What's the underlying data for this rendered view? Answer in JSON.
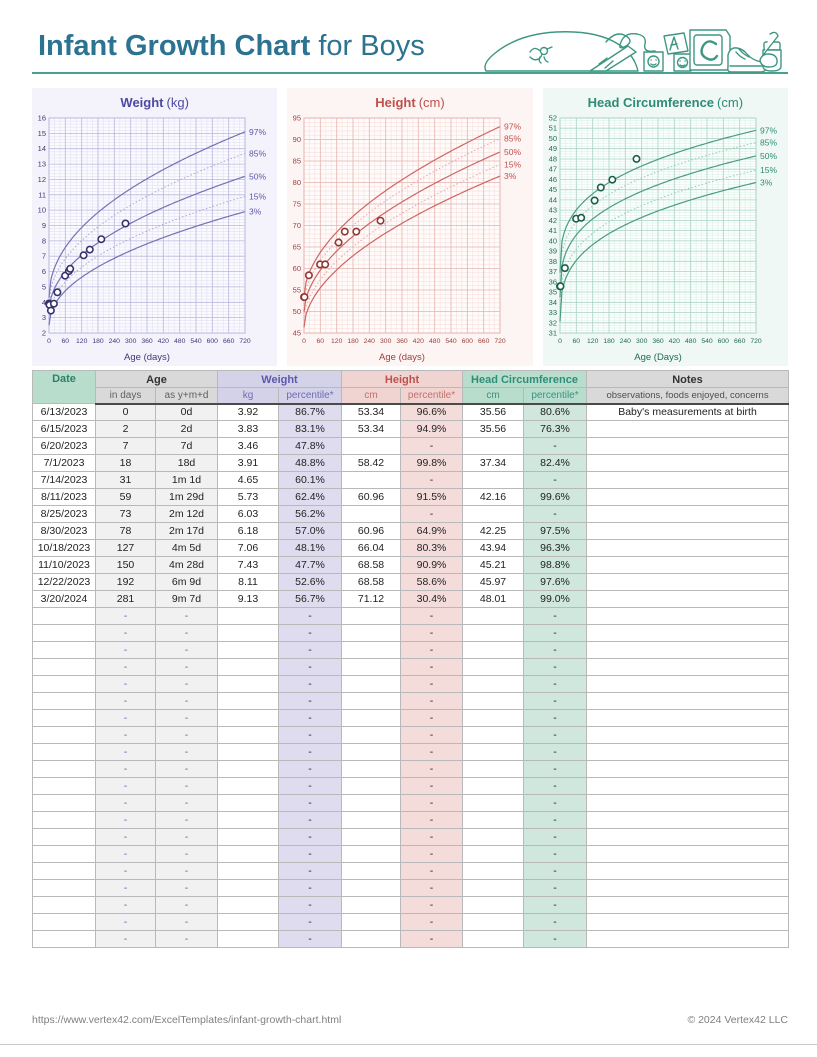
{
  "header": {
    "title_main": "Infant Growth Chart",
    "title_suffix": " for Boys"
  },
  "accent_colors": {
    "title_text": "#2b7390",
    "header_rule": "#49a18c",
    "toys_line_art": "#3f9682"
  },
  "chart_data": [
    {
      "type": "line",
      "title": "Weight",
      "unit_label": "(kg)",
      "xlabel": "Age (days)",
      "xlim": [
        0,
        720
      ],
      "x_tick_step": 60,
      "x_minor_step": 20,
      "ylim": [
        2,
        16
      ],
      "y_tick_step": 1,
      "y_minor_step": 0.2,
      "legend_position": "right",
      "curve_exponent": 0.48,
      "percentiles": [
        {
          "label": "97%",
          "start": 4.3,
          "end": 15.1,
          "style": "solid"
        },
        {
          "label": "85%",
          "start": 3.85,
          "end": 13.7,
          "style": "dotted"
        },
        {
          "label": "50%",
          "start": 3.3,
          "end": 12.2,
          "style": "solid"
        },
        {
          "label": "15%",
          "start": 2.9,
          "end": 10.9,
          "style": "dotted"
        },
        {
          "label": "3%",
          "start": 2.5,
          "end": 9.9,
          "style": "solid"
        }
      ],
      "points": {
        "x": [
          0,
          2,
          7,
          18,
          31,
          59,
          73,
          78,
          127,
          150,
          192,
          281
        ],
        "y": [
          3.92,
          3.83,
          3.46,
          3.91,
          4.65,
          5.73,
          6.03,
          6.18,
          7.06,
          7.43,
          8.11,
          9.13
        ]
      },
      "colors": {
        "title": "#4b49a4",
        "accent": "#5b58a8",
        "curve": "#7472b4",
        "dotted": "#a6a4cf",
        "grid_major": "#b9b7dc",
        "grid_minor": "#e2e1f2",
        "text": "#3c3a78",
        "marker": "#34316b",
        "panel_bg": "#f4f3fb",
        "plot_bg": "#fbfaff"
      }
    },
    {
      "type": "line",
      "title": "Height",
      "unit_label": "(cm)",
      "xlabel": "Age (days)",
      "xlim": [
        0,
        720
      ],
      "x_tick_step": 60,
      "x_minor_step": 20,
      "ylim": [
        45,
        95
      ],
      "y_tick_step": 5,
      "y_minor_step": 1,
      "legend_position": "right",
      "curve_exponent": 0.54,
      "percentiles": [
        {
          "label": "97%",
          "start": 53.4,
          "end": 93.0,
          "style": "solid"
        },
        {
          "label": "85%",
          "start": 51.8,
          "end": 90.2,
          "style": "dotted"
        },
        {
          "label": "50%",
          "start": 49.9,
          "end": 87.1,
          "style": "solid"
        },
        {
          "label": "15%",
          "start": 47.9,
          "end": 84.2,
          "style": "dotted"
        },
        {
          "label": "3%",
          "start": 46.3,
          "end": 81.5,
          "style": "solid"
        }
      ],
      "points": {
        "x": [
          0,
          2,
          18,
          59,
          78,
          127,
          150,
          192,
          281
        ],
        "y": [
          53.34,
          53.34,
          58.42,
          60.96,
          60.96,
          66.04,
          68.58,
          68.58,
          71.12
        ]
      },
      "colors": {
        "title": "#c0504d",
        "accent": "#c0504d",
        "curve": "#cd6662",
        "dotted": "#e0a39f",
        "grid_major": "#e5b3af",
        "grid_minor": "#f6dfdd",
        "text": "#9c3f3c",
        "marker": "#8e3734",
        "panel_bg": "#fdf5f3",
        "plot_bg": "#fffbfa"
      }
    },
    {
      "type": "line",
      "title": "Head Circumference",
      "unit_label": "(cm)",
      "xlabel": "Age (Days)",
      "xlim": [
        0,
        720
      ],
      "x_tick_step": 60,
      "x_minor_step": 20,
      "ylim": [
        31,
        52
      ],
      "y_tick_step": 1,
      "y_minor_step": 0.25,
      "legend_position": "right",
      "curve_exponent": 0.33,
      "percentiles": [
        {
          "label": "97%",
          "start": 36.9,
          "end": 50.8,
          "style": "solid"
        },
        {
          "label": "85%",
          "start": 35.8,
          "end": 49.6,
          "style": "dotted"
        },
        {
          "label": "50%",
          "start": 34.5,
          "end": 48.3,
          "style": "solid"
        },
        {
          "label": "15%",
          "start": 33.1,
          "end": 46.9,
          "style": "dotted"
        },
        {
          "label": "3%",
          "start": 32.1,
          "end": 45.7,
          "style": "solid"
        }
      ],
      "points": {
        "x": [
          0,
          2,
          18,
          59,
          78,
          127,
          150,
          192,
          281
        ],
        "y": [
          35.56,
          35.56,
          37.34,
          42.16,
          42.25,
          43.94,
          45.21,
          45.97,
          48.01
        ]
      },
      "colors": {
        "title": "#2e8b74",
        "accent": "#2e8b74",
        "curve": "#4a9b85",
        "dotted": "#93c5b4",
        "grid_major": "#a9d3c5",
        "grid_minor": "#def0e8",
        "text": "#1f6b57",
        "marker": "#1d5c4a",
        "panel_bg": "#f0f8f5",
        "plot_bg": "#fbfffd"
      }
    }
  ],
  "table": {
    "headers": {
      "date": "Date",
      "age": "Age",
      "age_sub1": "in days",
      "age_sub2": "as y+m+d",
      "weight": "Weight",
      "weight_sub1": "kg",
      "weight_sub2": "percentile*",
      "height": "Height",
      "height_sub1": "cm",
      "height_sub2": "percentile*",
      "head": "Head Circumference",
      "head_sub1": "cm",
      "head_sub2": "percentile*",
      "notes": "Notes",
      "notes_sub": "observations, foods enjoyed, concerns"
    },
    "rows": [
      [
        "6/13/2023",
        "0",
        "0d",
        "3.92",
        "86.7%",
        "53.34",
        "96.6%",
        "35.56",
        "80.6%",
        "Baby's measurements at birth"
      ],
      [
        "6/15/2023",
        "2",
        "2d",
        "3.83",
        "83.1%",
        "53.34",
        "94.9%",
        "35.56",
        "76.3%",
        ""
      ],
      [
        "6/20/2023",
        "7",
        "7d",
        "3.46",
        "47.8%",
        "",
        "-",
        "",
        "-",
        ""
      ],
      [
        "7/1/2023",
        "18",
        "18d",
        "3.91",
        "48.8%",
        "58.42",
        "99.8%",
        "37.34",
        "82.4%",
        ""
      ],
      [
        "7/14/2023",
        "31",
        "1m 1d",
        "4.65",
        "60.1%",
        "",
        "-",
        "",
        "-",
        ""
      ],
      [
        "8/11/2023",
        "59",
        "1m 29d",
        "5.73",
        "62.4%",
        "60.96",
        "91.5%",
        "42.16",
        "99.6%",
        ""
      ],
      [
        "8/25/2023",
        "73",
        "2m 12d",
        "6.03",
        "56.2%",
        "",
        "-",
        "",
        "-",
        ""
      ],
      [
        "8/30/2023",
        "78",
        "2m 17d",
        "6.18",
        "57.0%",
        "60.96",
        "64.9%",
        "42.25",
        "97.5%",
        ""
      ],
      [
        "10/18/2023",
        "127",
        "4m 5d",
        "7.06",
        "48.1%",
        "66.04",
        "80.3%",
        "43.94",
        "96.3%",
        ""
      ],
      [
        "11/10/2023",
        "150",
        "4m 28d",
        "7.43",
        "47.7%",
        "68.58",
        "90.9%",
        "45.21",
        "98.8%",
        ""
      ],
      [
        "12/22/2023",
        "192",
        "6m 9d",
        "8.11",
        "52.6%",
        "68.58",
        "58.6%",
        "45.97",
        "97.6%",
        ""
      ],
      [
        "3/20/2024",
        "281",
        "9m 7d",
        "9.13",
        "56.7%",
        "71.12",
        "30.4%",
        "48.01",
        "99.0%",
        ""
      ]
    ],
    "empty_row_count": 20,
    "empty_row_template": [
      "",
      "-",
      "-",
      "",
      "-",
      "",
      "-",
      "",
      "-",
      ""
    ]
  },
  "footer": {
    "url": "https://www.vertex42.com/ExcelTemplates/infant-growth-chart.html",
    "copyright": "© 2024 Vertex42 LLC"
  }
}
